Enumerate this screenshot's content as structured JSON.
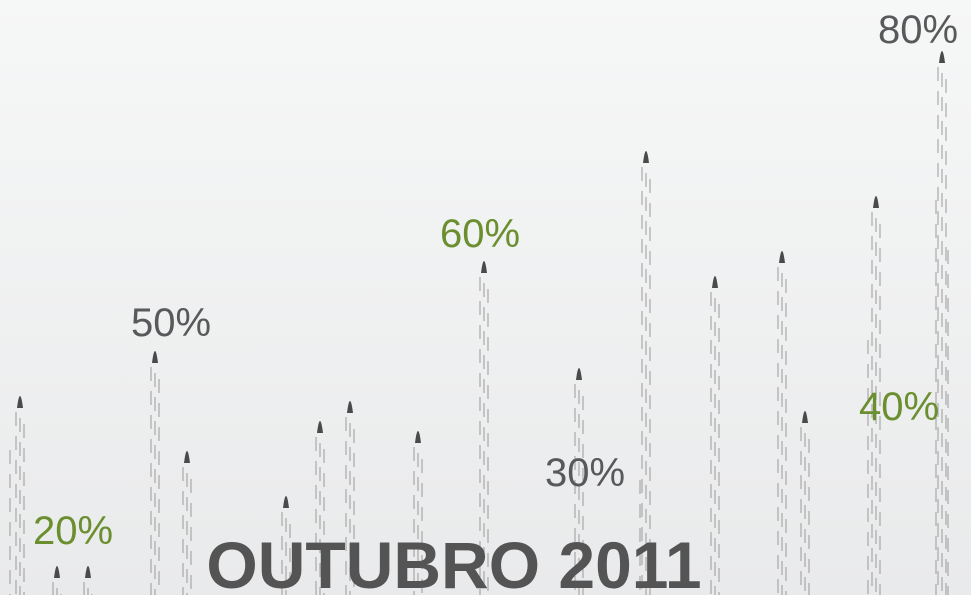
{
  "labels": [
    {
      "text": "80%"
    },
    {
      "text": "60%"
    },
    {
      "text": "50%"
    },
    {
      "text": "40%"
    },
    {
      "text": "30%"
    },
    {
      "text": "20%"
    }
  ],
  "title": "OUTUBRO 2011"
}
